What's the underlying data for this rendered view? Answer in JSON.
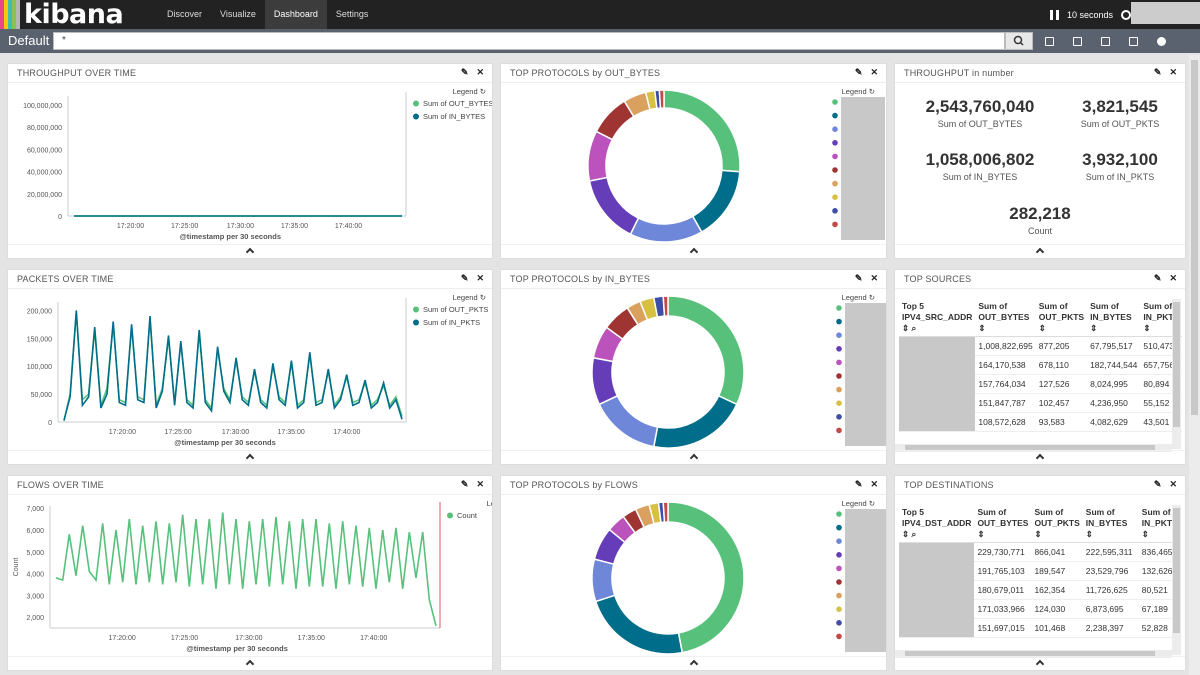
{
  "app": {
    "logo": "kibana",
    "logo_colors": [
      "#e8478b",
      "#f9c70c",
      "#3ebeb0",
      "#8cc152",
      "#b5b5b5"
    ]
  },
  "nav": {
    "items": [
      "Discover",
      "Visualize",
      "Dashboard",
      "Settings"
    ],
    "active": "Dashboard"
  },
  "refresh": {
    "interval": "10 seconds"
  },
  "search": {
    "label": "Default",
    "query": "*"
  },
  "panels": {
    "throughput": {
      "title": "THROUGHPUT OVER TIME",
      "legend_title": "Legend",
      "x_label": "@timestamp per 30 seconds"
    },
    "packets": {
      "title": "PACKETS OVER TIME",
      "legend_title": "Legend",
      "x_label": "@timestamp per 30 seconds"
    },
    "flows": {
      "title": "FLOWS OVER TIME",
      "legend_title": "Legend",
      "x_label": "@timestamp per 30 seconds",
      "y_label": "Count"
    },
    "proto_out": {
      "title": "TOP PROTOCOLS by OUT_BYTES",
      "legend_title": "Legend"
    },
    "proto_in": {
      "title": "TOP PROTOCOLS by IN_BYTES",
      "legend_title": "Legend"
    },
    "proto_flows": {
      "title": "TOP PROTOCOLS by FLOWS",
      "legend_title": "Legend"
    },
    "metrics": {
      "title": "THROUGHPUT in number",
      "items": [
        {
          "value": "2,543,760,040",
          "label": "Sum of OUT_BYTES"
        },
        {
          "value": "3,821,545",
          "label": "Sum of OUT_PKTS"
        },
        {
          "value": "1,058,006,802",
          "label": "Sum of IN_BYTES"
        },
        {
          "value": "3,932,100",
          "label": "Sum of IN_PKTS"
        },
        {
          "value": "282,218",
          "label": "Count"
        }
      ]
    },
    "sources": {
      "title": "TOP SOURCES",
      "headers": [
        "Top 5 IPV4_SRC_ADDR",
        "Sum of OUT_BYTES",
        "Sum of OUT_PKTS",
        "Sum of IN_BYTES",
        "Sum of IN_PKTS"
      ],
      "rows": [
        [
          "1,008,822,695",
          "877,205",
          "67,795,517",
          "510,473"
        ],
        [
          "164,170,538",
          "678,110",
          "182,744,544",
          "657,756"
        ],
        [
          "157,764,034",
          "127,526",
          "8,024,995",
          "80,894"
        ],
        [
          "151,847,787",
          "102,457",
          "4,236,950",
          "55,152"
        ],
        [
          "108,572,628",
          "93,583",
          "4,082,629",
          "43,501"
        ]
      ]
    },
    "destinations": {
      "title": "TOP DESTINATIONS",
      "headers": [
        "Top 5 IPV4_DST_ADDR",
        "Sum of OUT_BYTES",
        "Sum of OUT_PKTS",
        "Sum of IN_BYTES",
        "Sum of IN_PKTS"
      ],
      "rows": [
        [
          "229,730,771",
          "866,041",
          "222,595,311",
          "836,465"
        ],
        [
          "191,765,103",
          "189,547",
          "23,529,796",
          "132,626"
        ],
        [
          "180,679,011",
          "162,354",
          "11,726,625",
          "80,521"
        ],
        [
          "171,033,966",
          "124,030",
          "6,873,695",
          "67,189"
        ],
        [
          "151,697,015",
          "101,468",
          "2,238,397",
          "52,828"
        ]
      ]
    }
  },
  "chart_data": [
    {
      "type": "line",
      "title": "THROUGHPUT OVER TIME",
      "xlabel": "@timestamp per 30 seconds",
      "ylabel": "",
      "x_ticks": [
        "17:20:00",
        "17:25:00",
        "17:30:00",
        "17:35:00",
        "17:40:00"
      ],
      "y_ticks": [
        "0",
        "20,000,000",
        "40,000,000",
        "60,000,000",
        "80,000,000",
        "100,000,000"
      ],
      "ylim": [
        0,
        108000000
      ],
      "series": [
        {
          "name": "Sum of OUT_BYTES",
          "color": "#57c17b",
          "values": [
            7,
            38,
            62,
            45,
            20,
            30,
            28,
            50,
            72,
            33,
            27,
            40,
            25,
            68,
            36,
            38,
            50,
            36,
            32,
            95,
            38,
            48,
            55,
            35,
            20,
            70,
            38,
            38,
            40,
            86,
            30,
            45,
            72,
            45,
            38,
            38,
            52,
            43,
            30,
            55,
            40,
            60,
            45,
            70,
            50,
            50,
            70,
            38,
            45,
            52,
            56,
            48,
            38,
            38,
            40,
            55,
            46,
            60,
            42,
            38,
            40,
            46,
            22,
            38,
            40,
            50,
            30,
            20,
            5
          ]
        },
        {
          "name": "Sum of IN_BYTES",
          "color": "#006e8a",
          "values": [
            2,
            12,
            8,
            15,
            5,
            6,
            40,
            30,
            48,
            6,
            8,
            10,
            4,
            85,
            5,
            10,
            2,
            60,
            5,
            8,
            30,
            45,
            7,
            10,
            6,
            7,
            4,
            6,
            38,
            20,
            6,
            22,
            7,
            8,
            38,
            20,
            6,
            10,
            5,
            30,
            28,
            8,
            12,
            28,
            5,
            40,
            20,
            8,
            10,
            36,
            15,
            6,
            14,
            10,
            8,
            7,
            5,
            36,
            14,
            7,
            8,
            10,
            4,
            20,
            8,
            6,
            28,
            12,
            1
          ]
        }
      ]
    },
    {
      "type": "line",
      "title": "PACKETS OVER TIME",
      "xlabel": "@timestamp per 30 seconds",
      "ylabel": "",
      "x_ticks": [
        "17:20:00",
        "17:25:00",
        "17:30:00",
        "17:35:00",
        "17:40:00"
      ],
      "y_ticks": [
        "0",
        "50,000",
        "100,000",
        "150,000",
        "200,000"
      ],
      "ylim": [
        0,
        215000
      ],
      "series": [
        {
          "name": "Sum of OUT_PKTS",
          "color": "#57c17b",
          "values": [
            2000,
            50000,
            195000,
            40000,
            50000,
            165000,
            30000,
            60000,
            175000,
            40000,
            35000,
            170000,
            45000,
            40000,
            185000,
            30000,
            60000,
            150000,
            35000,
            140000,
            40000,
            30000,
            160000,
            40000,
            25000,
            130000,
            60000,
            40000,
            110000,
            45000,
            35000,
            90000,
            40000,
            30000,
            100000,
            45000,
            35000,
            105000,
            30000,
            40000,
            120000,
            35000,
            40000,
            90000,
            30000,
            45000,
            80000,
            35000,
            40000,
            70000,
            30000,
            40000,
            65000,
            30000,
            45000,
            10000
          ]
        },
        {
          "name": "Sum of IN_PKTS",
          "color": "#006e8a",
          "values": [
            3000,
            45000,
            200000,
            30000,
            45000,
            170000,
            25000,
            50000,
            180000,
            35000,
            30000,
            175000,
            40000,
            35000,
            190000,
            25000,
            55000,
            155000,
            30000,
            145000,
            35000,
            25000,
            165000,
            35000,
            20000,
            135000,
            55000,
            35000,
            115000,
            40000,
            30000,
            95000,
            35000,
            25000,
            105000,
            40000,
            30000,
            110000,
            25000,
            35000,
            125000,
            30000,
            35000,
            95000,
            25000,
            40000,
            85000,
            30000,
            35000,
            75000,
            25000,
            35000,
            70000,
            25000,
            40000,
            5000
          ]
        }
      ]
    },
    {
      "type": "line",
      "title": "FLOWS OVER TIME",
      "xlabel": "@timestamp per 30 seconds",
      "ylabel": "Count",
      "x_ticks": [
        "17:20:00",
        "17:25:00",
        "17:30:00",
        "17:35:00",
        "17:40:00"
      ],
      "y_ticks": [
        "2,000",
        "3,000",
        "4,000",
        "5,000",
        "6,000",
        "7,000"
      ],
      "ylim": [
        1500,
        7100
      ],
      "series": [
        {
          "name": "Count",
          "color": "#57c17b",
          "values": [
            3800,
            3700,
            5800,
            3900,
            6200,
            4100,
            3700,
            6300,
            3500,
            6000,
            3600,
            6500,
            3500,
            6200,
            3600,
            6400,
            3500,
            6300,
            3600,
            6700,
            3400,
            6500,
            3500,
            6500,
            3300,
            6800,
            3500,
            6500,
            3300,
            6400,
            3500,
            6500,
            3400,
            6600,
            3500,
            6400,
            3300,
            6500,
            3400,
            6500,
            3400,
            6300,
            3300,
            6400,
            3500,
            6200,
            3400,
            6100,
            3300,
            6000,
            3600,
            6100,
            3300,
            5900,
            3800,
            5900,
            2800,
            1600
          ]
        }
      ]
    },
    {
      "type": "pie",
      "title": "TOP PROTOCOLS by OUT_BYTES",
      "values": [
        27,
        16,
        16,
        15,
        11,
        9,
        5,
        2,
        1,
        1
      ],
      "colors": [
        "#57c17b",
        "#006e8a",
        "#6f87d8",
        "#663db8",
        "#bc52bc",
        "#9e3533",
        "#daa05d",
        "#d8c142",
        "#3c4ea6",
        "#c04a45"
      ]
    },
    {
      "type": "pie",
      "title": "TOP PROTOCOLS by IN_BYTES",
      "values": [
        32,
        21,
        15,
        10,
        7,
        6,
        3,
        3,
        2,
        1
      ],
      "colors": [
        "#57c17b",
        "#006e8a",
        "#6f87d8",
        "#663db8",
        "#bc52bc",
        "#9e3533",
        "#daa05d",
        "#d8c142",
        "#3c4ea6",
        "#c04a45"
      ]
    },
    {
      "type": "pie",
      "title": "TOP PROTOCOLS by FLOWS",
      "values": [
        47,
        23,
        9,
        7,
        4,
        3,
        3,
        2,
        1,
        1
      ],
      "colors": [
        "#57c17b",
        "#006e8a",
        "#6f87d8",
        "#663db8",
        "#bc52bc",
        "#9e3533",
        "#daa05d",
        "#d8c142",
        "#3c4ea6",
        "#c04a45"
      ]
    }
  ]
}
